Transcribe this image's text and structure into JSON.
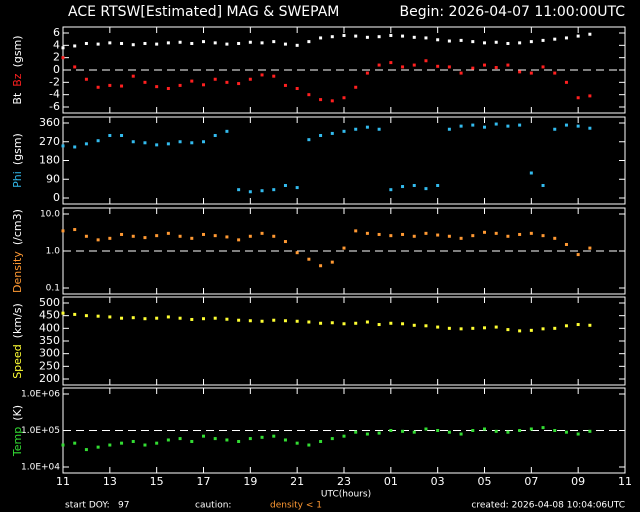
{
  "header": {
    "title": "ACE RTSW[Estimated] MAG & SWEPAM",
    "begin": "Begin: 2026-04-07 11:00:00UTC"
  },
  "x_axis": {
    "label": "UTC(hours)",
    "xlim": [
      0,
      24
    ],
    "xticks": [
      {
        "value": 0,
        "label": "11"
      },
      {
        "value": 2,
        "label": "13"
      },
      {
        "value": 4,
        "label": "15"
      },
      {
        "value": 6,
        "label": "17"
      },
      {
        "value": 8,
        "label": "19"
      },
      {
        "value": 10,
        "label": "21"
      },
      {
        "value": 12,
        "label": "23"
      },
      {
        "value": 14,
        "label": "01"
      },
      {
        "value": 16,
        "label": "03"
      },
      {
        "value": 18,
        "label": "05"
      },
      {
        "value": 20,
        "label": "07"
      },
      {
        "value": 22,
        "label": "09"
      },
      {
        "value": 24,
        "label": "11"
      }
    ],
    "x": [
      0,
      0.5,
      1,
      1.5,
      2,
      2.5,
      3,
      3.5,
      4,
      4.5,
      5,
      5.5,
      6,
      6.5,
      7,
      7.5,
      8,
      8.5,
      9,
      9.5,
      10,
      10.5,
      11,
      11.5,
      12,
      12.5,
      13,
      13.5,
      14,
      14.5,
      15,
      15.5,
      16,
      16.5,
      17,
      17.5,
      18,
      18.5,
      19,
      19.5,
      20,
      20.5,
      21,
      21.5,
      22,
      22.5
    ]
  },
  "chart_data": [
    {
      "type": "scatter",
      "unit": "(gsm)",
      "ylim": [
        -6,
        6
      ],
      "yticks": [
        6,
        4,
        2,
        0,
        -2,
        -4,
        -6
      ],
      "ref_line": 0,
      "series": [
        {
          "name": "Bt",
          "color": "#ffffff",
          "values": [
            3.6,
            3.9,
            4.3,
            4.2,
            4.4,
            4.3,
            4.1,
            4.3,
            4.2,
            4.4,
            4.5,
            4.3,
            4.6,
            4.4,
            4.2,
            4.3,
            4.5,
            4.4,
            4.6,
            4.2,
            4.0,
            4.6,
            5.2,
            5.4,
            5.6,
            5.5,
            5.3,
            5.4,
            5.6,
            5.5,
            5.3,
            5.2,
            4.9,
            4.7,
            4.8,
            4.6,
            4.4,
            4.5,
            4.3,
            4.4,
            4.6,
            4.8,
            5.0,
            5.2,
            5.5,
            5.8
          ]
        },
        {
          "name": "Bz",
          "color": "#ff2020",
          "values": [
            2.0,
            0.5,
            -1.5,
            -2.8,
            -2.5,
            -2.6,
            -1.0,
            -2.0,
            -2.7,
            -3.0,
            -2.5,
            -1.8,
            -2.4,
            -1.5,
            -2.0,
            -2.2,
            -1.5,
            -0.8,
            -1.0,
            -2.5,
            -3.0,
            -4.0,
            -4.8,
            -5.0,
            -4.5,
            -2.8,
            -0.5,
            0.8,
            1.2,
            0.5,
            0.8,
            1.5,
            0.6,
            0.5,
            -0.5,
            0.3,
            0.8,
            0.4,
            0.8,
            -0.3,
            -0.5,
            0.5,
            -0.5,
            -2.0,
            -4.5,
            -4.2
          ]
        }
      ]
    },
    {
      "type": "scatter",
      "unit": "(gsm)",
      "ylim": [
        0,
        360
      ],
      "yticks": [
        360,
        270,
        180,
        90,
        0
      ],
      "series": [
        {
          "name": "Phi",
          "color": "#33bbee",
          "values": [
            250,
            245,
            260,
            275,
            300,
            300,
            270,
            265,
            255,
            260,
            270,
            265,
            270,
            300,
            320,
            40,
            30,
            35,
            40,
            60,
            50,
            280,
            300,
            310,
            320,
            330,
            340,
            330,
            40,
            55,
            60,
            45,
            60,
            330,
            345,
            350,
            340,
            355,
            345,
            350,
            120,
            60,
            330,
            350,
            345,
            335
          ]
        }
      ]
    },
    {
      "type": "scatter",
      "unit": "(/cm3)",
      "log": true,
      "ylim": [
        0.1,
        10
      ],
      "yticks": [
        {
          "value": 10,
          "label": "10.0"
        },
        {
          "value": 1,
          "label": "1.0"
        },
        {
          "value": 0.1,
          "label": "0.1"
        }
      ],
      "ref_line": 1,
      "series": [
        {
          "name": "Density",
          "color": "#ff9933",
          "values": [
            3.5,
            3.8,
            2.5,
            2.0,
            2.2,
            2.8,
            2.5,
            2.3,
            2.6,
            3.0,
            2.5,
            2.2,
            2.8,
            2.6,
            2.4,
            2.0,
            2.5,
            3.0,
            2.5,
            1.8,
            0.9,
            0.6,
            0.4,
            0.5,
            1.2,
            3.5,
            3.0,
            2.8,
            2.6,
            2.8,
            2.5,
            3.0,
            2.7,
            2.5,
            2.2,
            2.6,
            3.2,
            3.0,
            2.5,
            2.8,
            3.0,
            2.6,
            2.2,
            1.5,
            0.8,
            1.2
          ]
        }
      ]
    },
    {
      "type": "scatter",
      "unit": "(km/s)",
      "ylim": [
        200,
        500
      ],
      "yticks": [
        500,
        450,
        400,
        350,
        300,
        250,
        200
      ],
      "series": [
        {
          "name": "Speed",
          "color": "#ffff33",
          "values": [
            460,
            455,
            450,
            448,
            445,
            440,
            442,
            438,
            440,
            445,
            440,
            435,
            438,
            440,
            436,
            432,
            430,
            428,
            432,
            430,
            428,
            425,
            420,
            422,
            418,
            420,
            425,
            415,
            420,
            418,
            412,
            410,
            405,
            400,
            398,
            400,
            402,
            405,
            395,
            390,
            392,
            398,
            400,
            410,
            415,
            412
          ]
        }
      ]
    },
    {
      "type": "scatter",
      "unit": "(K)",
      "log": true,
      "ylim": [
        10000,
        1000000
      ],
      "yticks": [
        {
          "value": 1000000,
          "label": "1.0E+06"
        },
        {
          "value": 100000,
          "label": "1.0E+05"
        },
        {
          "value": 10000,
          "label": "1.0E+04"
        }
      ],
      "ref_line": 100000,
      "series": [
        {
          "name": "Temp",
          "color": "#33dd33",
          "values": [
            40000,
            45000,
            30000,
            35000,
            40000,
            45000,
            50000,
            40000,
            45000,
            55000,
            60000,
            50000,
            70000,
            60000,
            55000,
            50000,
            60000,
            65000,
            70000,
            55000,
            45000,
            40000,
            50000,
            60000,
            70000,
            90000,
            80000,
            85000,
            100000,
            95000,
            90000,
            110000,
            100000,
            90000,
            80000,
            100000,
            110000,
            95000,
            90000,
            100000,
            110000,
            120000,
            100000,
            90000,
            80000,
            95000
          ]
        }
      ]
    }
  ],
  "footer": {
    "doy_label": "start DOY:",
    "doy": "97",
    "caution": "caution:",
    "caution_note": "density < 1",
    "created": "created: 2026-04-08 10:04:06UTC"
  }
}
